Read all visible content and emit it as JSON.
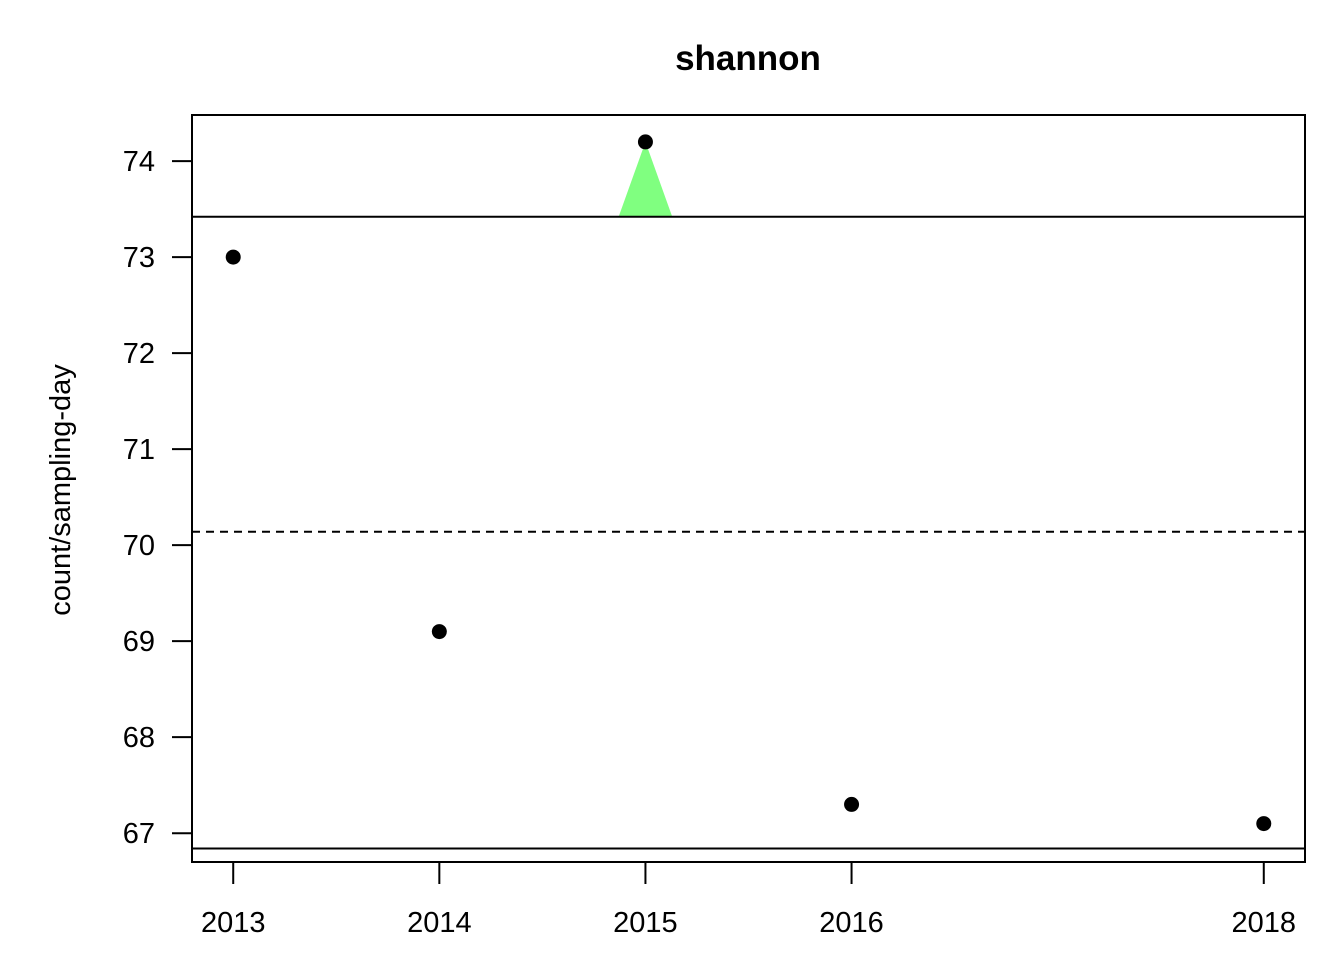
{
  "chart_data": {
    "type": "scatter",
    "title": "shannon",
    "xlabel": "",
    "ylabel": "count/sampling-day",
    "x_ticks": [
      2013,
      2014,
      2015,
      2016,
      2018
    ],
    "y_ticks": [
      67,
      68,
      69,
      70,
      71,
      72,
      73,
      74
    ],
    "xlim": [
      2012.8,
      2018.2
    ],
    "ylim": [
      66.7,
      74.48
    ],
    "points": [
      {
        "x": 2013,
        "y": 73.0
      },
      {
        "x": 2014,
        "y": 69.1
      },
      {
        "x": 2015,
        "y": 74.2
      },
      {
        "x": 2016,
        "y": 67.3
      },
      {
        "x": 2018,
        "y": 67.1
      }
    ],
    "reference_lines": {
      "upper_limit": 73.42,
      "mean": 70.14,
      "lower_limit": 66.84
    },
    "highlight": {
      "x": 2015,
      "y": 74.2,
      "color": "#80ff80"
    },
    "grid": false,
    "legend": "none"
  }
}
